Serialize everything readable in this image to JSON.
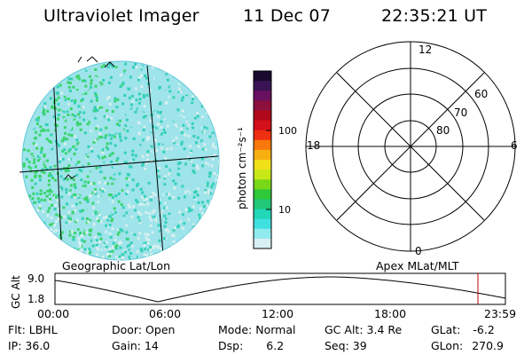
{
  "header": {
    "instrument": "Ultraviolet Imager",
    "date": "11 Dec 07",
    "time": "22:35:21 UT"
  },
  "colorbar": {
    "unit_label": "photon cm⁻²s⁻¹",
    "tick_labels": [
      "100",
      "10"
    ],
    "colors_top_to_bottom": [
      "#1a0a2e",
      "#3a1454",
      "#6a1060",
      "#8c0f3c",
      "#b00a1a",
      "#d4101a",
      "#ee3010",
      "#f8780c",
      "#f8b010",
      "#f0e018",
      "#c8e818",
      "#78d818",
      "#30c838",
      "#20c878",
      "#20d8b8",
      "#40e0e0",
      "#90eaee",
      "#d8f0f4"
    ]
  },
  "polar_plot": {
    "mlt_labels": {
      "top": "12",
      "right": "6",
      "bottom": "0",
      "left": "18"
    },
    "lat_labels": [
      "60",
      "70",
      "80"
    ]
  },
  "earth_image": {
    "colors": {
      "outline": "#60c8d8",
      "main": "#9ee4ea",
      "bright": "#34d0b6",
      "green": "#3cd46c",
      "pale": "#d8efef"
    }
  },
  "labels": {
    "geographic": "Geographic Lat/Lon",
    "apex": "Apex MLat/MLT"
  },
  "altitude_plot": {
    "ylabel": "GC Alt",
    "yticks": [
      "9.0",
      "1.8"
    ],
    "xticks": [
      "00:00",
      "06:00",
      "12:00",
      "18:00",
      "23:59"
    ],
    "marker_color": "#c00000"
  },
  "info_row1": [
    {
      "label": "Flt:",
      "value": "LBHL"
    },
    {
      "label": "Door:",
      "value": "Open"
    },
    {
      "label": "Mode:",
      "value": "Normal"
    },
    {
      "label": "GC Alt:",
      "value": "3.4 Re"
    },
    {
      "label": "GLat:",
      "value": "-6.2"
    }
  ],
  "info_row2": [
    {
      "label": "IP:",
      "value": "36.0"
    },
    {
      "label": "Gain:",
      "value": "14"
    },
    {
      "label": "Dsp:",
      "value": "6.2"
    },
    {
      "label": "Seq:",
      "value": "39"
    },
    {
      "label": "GLon:",
      "value": "270.9"
    }
  ]
}
